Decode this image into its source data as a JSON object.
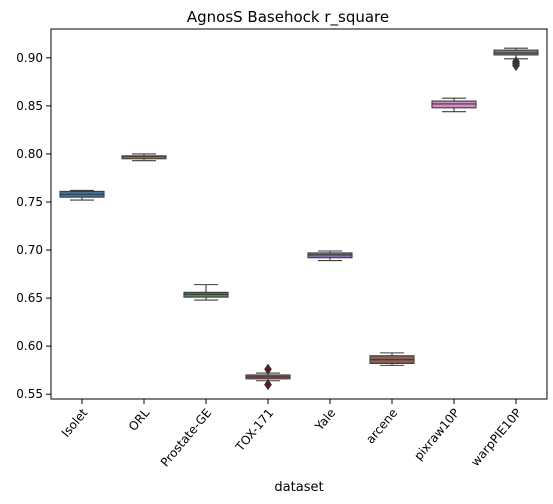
{
  "chart_data": {
    "type": "box",
    "title": "AgnosS Basehock r_square",
    "xlabel": "dataset",
    "ylabel": "",
    "ylim": [
      0.545,
      0.93
    ],
    "yticks": [
      0.55,
      0.6,
      0.65,
      0.7,
      0.75,
      0.8,
      0.85,
      0.9
    ],
    "ytick_labels": [
      "0.55",
      "0.60",
      "0.65",
      "0.70",
      "0.75",
      "0.80",
      "0.85",
      "0.90"
    ],
    "categories": [
      "Isolet",
      "ORL",
      "Prostate-GE",
      "TOX-171",
      "Yale",
      "arcene",
      "pixraw10P",
      "warpPIE10P"
    ],
    "boxes": [
      {
        "category": "Isolet",
        "whisker_low": 0.752,
        "q1": 0.755,
        "median": 0.758,
        "q3": 0.761,
        "whisker_high": 0.762,
        "outliers": [],
        "color": "#3f74a3"
      },
      {
        "category": "ORL",
        "whisker_low": 0.793,
        "q1": 0.795,
        "median": 0.797,
        "q3": 0.798,
        "whisker_high": 0.8,
        "outliers": [],
        "color": "#d1823a"
      },
      {
        "category": "Prostate-GE",
        "whisker_low": 0.648,
        "q1": 0.651,
        "median": 0.654,
        "q3": 0.656,
        "whisker_high": 0.664,
        "outliers": [],
        "color": "#4a8f4a"
      },
      {
        "category": "TOX-171",
        "whisker_low": 0.564,
        "q1": 0.566,
        "median": 0.568,
        "q3": 0.57,
        "whisker_high": 0.572,
        "outliers": [
          0.576,
          0.56
        ],
        "color": "#b14a4a"
      },
      {
        "category": "Yale",
        "whisker_low": 0.689,
        "q1": 0.692,
        "median": 0.695,
        "q3": 0.697,
        "whisker_high": 0.699,
        "outliers": [],
        "color": "#8c73b0"
      },
      {
        "category": "arcene",
        "whisker_low": 0.58,
        "q1": 0.582,
        "median": 0.586,
        "q3": 0.59,
        "whisker_high": 0.593,
        "outliers": [],
        "color": "#8b6055"
      },
      {
        "category": "pixraw10P",
        "whisker_low": 0.844,
        "q1": 0.848,
        "median": 0.852,
        "q3": 0.855,
        "whisker_high": 0.858,
        "outliers": [],
        "color": "#d08fc5"
      },
      {
        "category": "warpPIE10P",
        "whisker_low": 0.899,
        "q1": 0.903,
        "median": 0.905,
        "q3": 0.908,
        "whisker_high": 0.91,
        "outliers": [
          0.896,
          0.894,
          0.892
        ],
        "color": "#7f7f7f"
      }
    ],
    "grid": false,
    "legend": "none"
  }
}
